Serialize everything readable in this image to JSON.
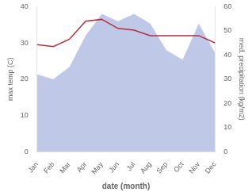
{
  "chart_data": {
    "type": "line",
    "categories": [
      "Jan",
      "Feb",
      "Mar",
      "Apr",
      "May",
      "Jun",
      "Jul",
      "Aug",
      "Sep",
      "Oct",
      "Nov",
      "Dec"
    ],
    "series": [
      {
        "type": "area",
        "color": "#c0c8e8",
        "axis": "y2",
        "values": [
          32,
          30,
          35,
          48,
          57,
          54,
          57,
          53,
          42,
          38,
          53,
          41
        ]
      },
      {
        "type": "line",
        "color": "#b03040",
        "axis": "y",
        "values": [
          29.5,
          29.0,
          31.0,
          36.0,
          36.5,
          34.0,
          33.5,
          32.0,
          32.0,
          32.0,
          32.0,
          30.0
        ]
      }
    ],
    "xlabel": "date (month)",
    "ylabel": "max temp (C)",
    "y2label": "med. precipitation (kg/m2)",
    "ylim": [
      0,
      40
    ],
    "yticks": [
      0,
      10,
      20,
      30,
      40
    ],
    "y2lim": [
      0,
      60
    ],
    "y2ticks": [
      0,
      10,
      20,
      30,
      40,
      50,
      60
    ],
    "grid": false
  }
}
